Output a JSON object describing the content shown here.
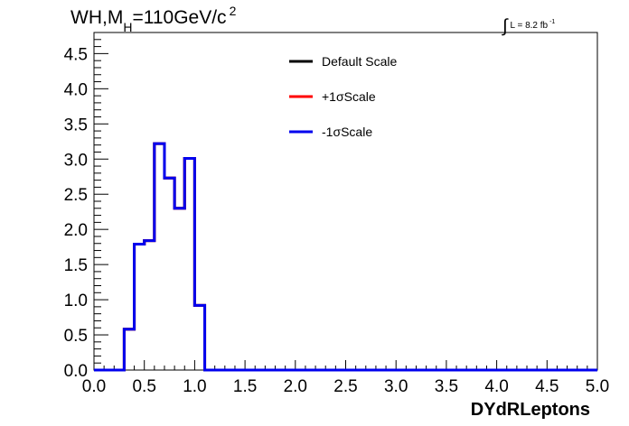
{
  "header": {
    "title_main": "WH,M",
    "title_sub": "H",
    "title_rest": "=110GeV/c",
    "title_sup": "2",
    "lumi_integral": "∫",
    "lumi_text": "L = 8.2 fb",
    "lumi_sup": "-1"
  },
  "chart_data": {
    "type": "line",
    "style": "step-histogram",
    "xlabel": "DYdRLeptons",
    "ylabel": "",
    "xlim": [
      0,
      5
    ],
    "ylim": [
      0,
      4.8
    ],
    "grid": false,
    "legend_position": "top-center",
    "x_ticks": [
      "0.0",
      "0.5",
      "1.0",
      "1.5",
      "2.0",
      "2.5",
      "3.0",
      "3.5",
      "4.0",
      "4.5",
      "5.0"
    ],
    "y_ticks": [
      "0.0",
      "0.5",
      "1.0",
      "1.5",
      "2.0",
      "2.5",
      "3.0",
      "3.5",
      "4.0",
      "4.5"
    ],
    "bin_edges": [
      0.0,
      0.1,
      0.2,
      0.3,
      0.4,
      0.5,
      0.6,
      0.7,
      0.8,
      0.9,
      1.0,
      1.1,
      1.2,
      1.3,
      1.4,
      1.5,
      1.6,
      1.7,
      1.8,
      1.9,
      2.0,
      2.1,
      2.2,
      2.3,
      2.4,
      2.5,
      2.6,
      2.7,
      2.8,
      2.9,
      3.0,
      3.1,
      3.2,
      3.3,
      3.4,
      3.5,
      3.6,
      3.7,
      3.8,
      3.9,
      4.0,
      4.1,
      4.2,
      4.3,
      4.4,
      4.5,
      4.6,
      4.7,
      4.8,
      4.9,
      5.0
    ],
    "series": [
      {
        "name": "Default Scale",
        "color": "#000000",
        "values": [
          0,
          0,
          0,
          0.58,
          1.79,
          1.84,
          3.22,
          2.73,
          2.3,
          3.01,
          0.92,
          0,
          0,
          0,
          0,
          0,
          0,
          0,
          0,
          0,
          0,
          0,
          0,
          0,
          0,
          0,
          0,
          0,
          0,
          0,
          0,
          0,
          0,
          0,
          0,
          0,
          0,
          0,
          0,
          0,
          0,
          0,
          0,
          0,
          0,
          0,
          0,
          0,
          0,
          0
        ]
      },
      {
        "name": "+1σScale",
        "color": "#ff0000",
        "values": [
          0,
          0,
          0,
          0.58,
          1.79,
          1.84,
          3.22,
          2.73,
          2.3,
          3.01,
          0.92,
          0,
          0,
          0,
          0,
          0,
          0,
          0,
          0,
          0,
          0,
          0,
          0,
          0,
          0,
          0,
          0,
          0,
          0,
          0,
          0,
          0,
          0,
          0,
          0,
          0,
          0,
          0,
          0,
          0,
          0,
          0,
          0,
          0,
          0,
          0,
          0,
          0,
          0,
          0
        ]
      },
      {
        "name": "-1σScale",
        "color": "#0000ee",
        "values": [
          0,
          0,
          0,
          0.58,
          1.79,
          1.84,
          3.22,
          2.73,
          2.3,
          3.01,
          0.92,
          0,
          0,
          0,
          0,
          0,
          0,
          0,
          0,
          0,
          0,
          0,
          0,
          0,
          0,
          0,
          0,
          0,
          0,
          0,
          0,
          0,
          0,
          0,
          0,
          0,
          0,
          0,
          0,
          0,
          0,
          0,
          0,
          0,
          0,
          0,
          0,
          0,
          0,
          0
        ]
      }
    ]
  }
}
